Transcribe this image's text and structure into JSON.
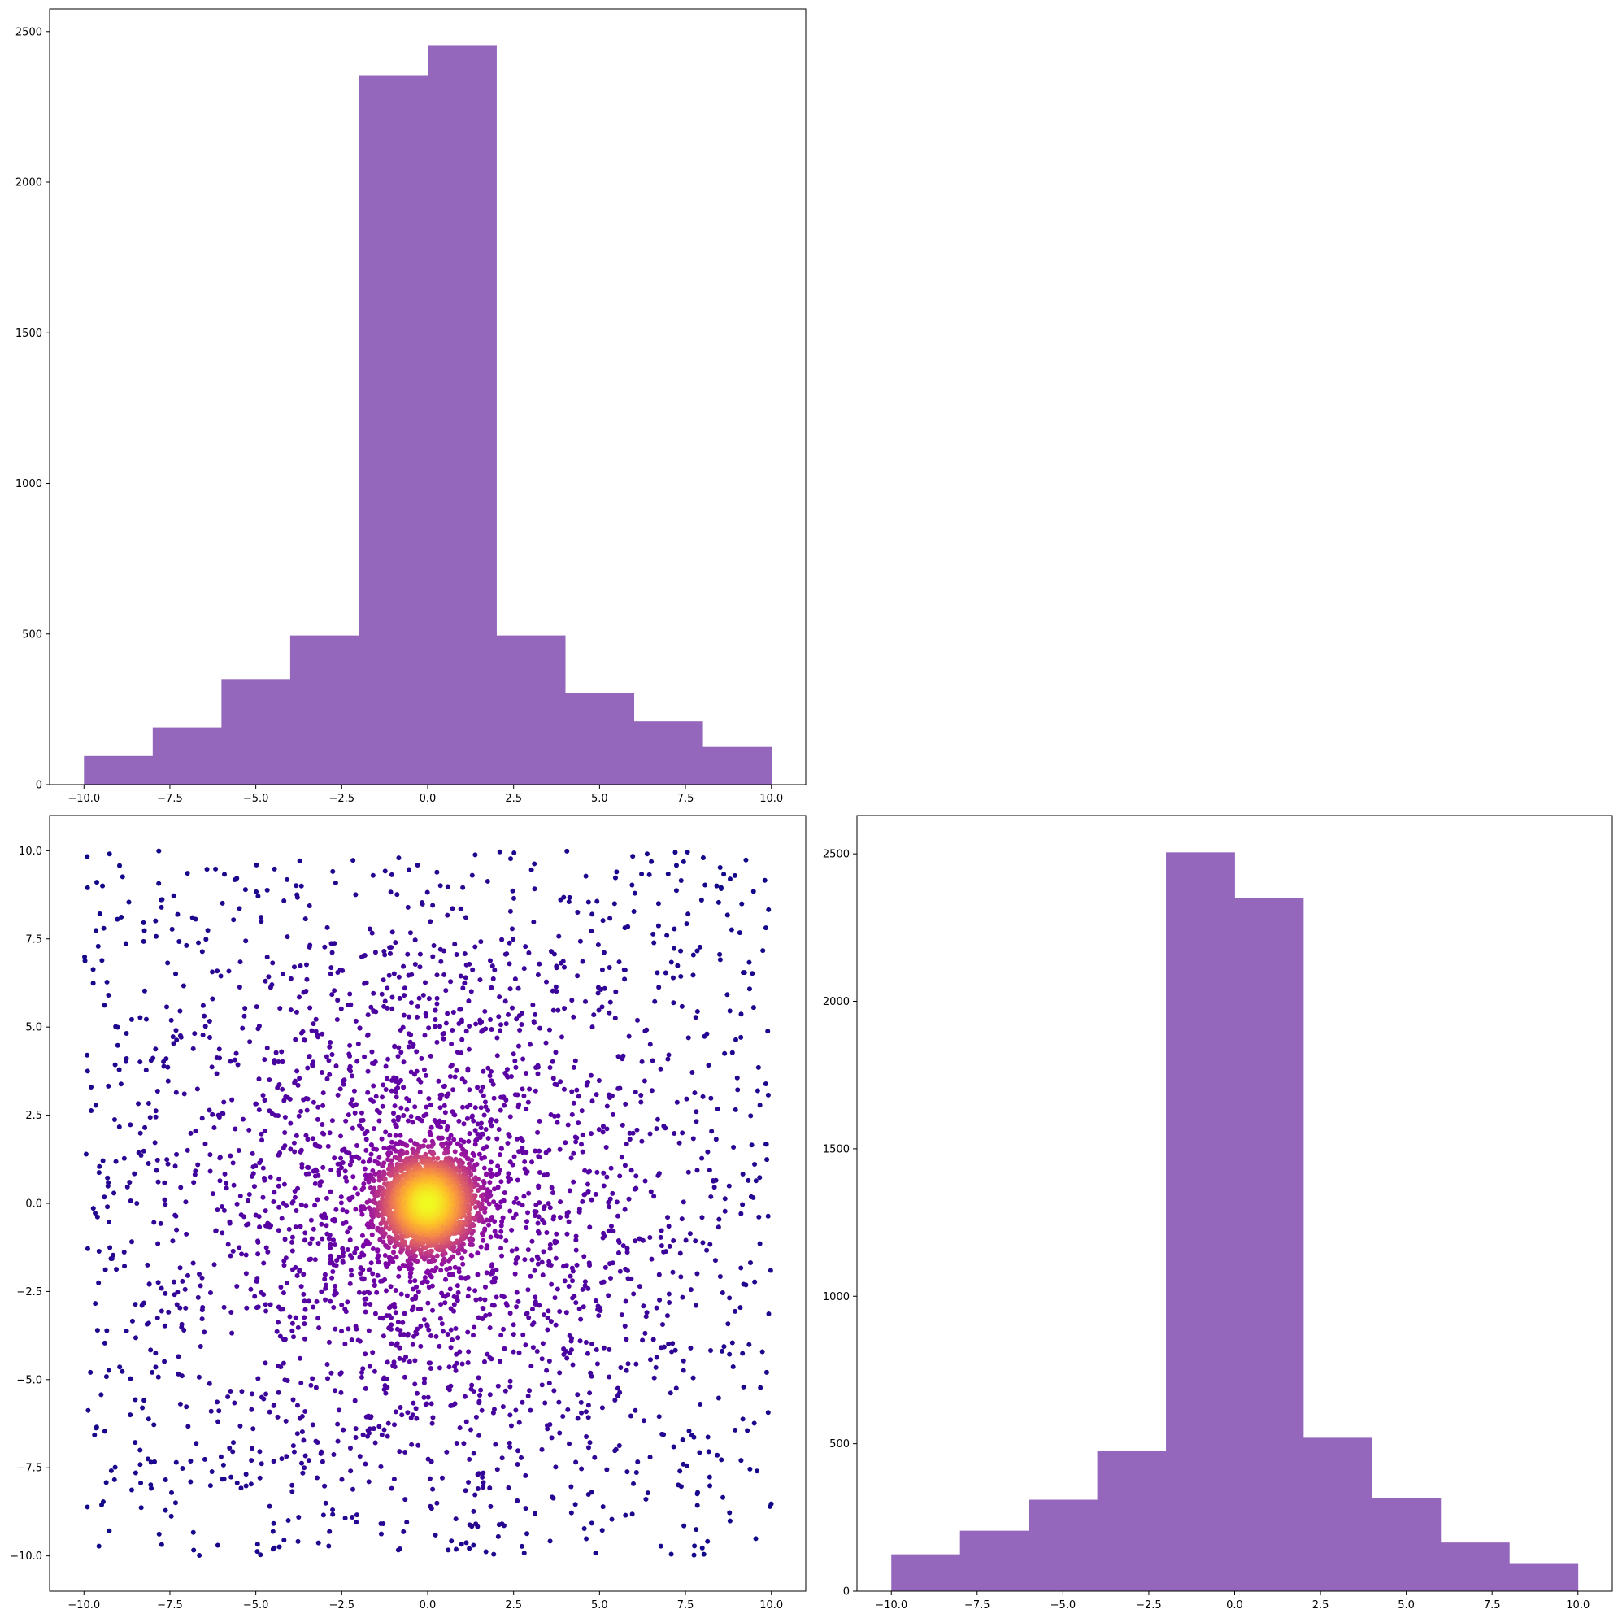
{
  "figure": {
    "background": "#ffffff",
    "panel_layout": "2x2 corner plot; upper-right panel empty"
  },
  "colors": {
    "histogram_fill": "#9467bd",
    "scatter_colormap": "plasma",
    "axes_edge": "#000000"
  },
  "chart_data": [
    {
      "type": "bar",
      "panel": "top-left",
      "subtype": "histogram",
      "bin_edges": [
        -10,
        -8,
        -6,
        -4,
        -2,
        0,
        2,
        4,
        6,
        8,
        10
      ],
      "values": [
        95,
        190,
        350,
        495,
        2355,
        2455,
        495,
        305,
        210,
        125
      ],
      "xlim": [
        -11,
        11
      ],
      "ylim": [
        0,
        2575
      ],
      "xticks": [
        -10,
        -7.5,
        -5,
        -2.5,
        0,
        2.5,
        5,
        7.5,
        10
      ],
      "xtick_labels": [
        "−10.0",
        "−7.5",
        "−5.0",
        "−2.5",
        "0.0",
        "2.5",
        "5.0",
        "7.5",
        "10.0"
      ],
      "yticks": [
        0,
        500,
        1000,
        1500,
        2000,
        2500
      ],
      "ytick_labels": [
        "0",
        "500",
        "1000",
        "1500",
        "2000",
        "2500"
      ],
      "title": "",
      "xlabel": "",
      "ylabel": "",
      "grid": false
    },
    {
      "type": "scatter",
      "panel": "bottom-left",
      "description_of_data": "approx. 5000 points: dense Gaussian core near (0,0) plus broad spread to ±10, colored by local density (plasma colormap)",
      "approx_point_count": 5000,
      "components": [
        {
          "share": 0.44,
          "center": [
            0,
            0
          ],
          "sigma": 0.7
        },
        {
          "share": 0.31,
          "center": [
            0,
            0
          ],
          "sigma": 3.5
        },
        {
          "share": 0.25,
          "distribution": "uniform",
          "range": [
            -10,
            10
          ]
        }
      ],
      "xlim": [
        -11,
        11
      ],
      "ylim": [
        -11,
        11
      ],
      "xticks": [
        -10,
        -7.5,
        -5,
        -2.5,
        0,
        2.5,
        5,
        7.5,
        10
      ],
      "xtick_labels": [
        "−10.0",
        "−7.5",
        "−5.0",
        "−2.5",
        "0.0",
        "2.5",
        "5.0",
        "7.5",
        "10.0"
      ],
      "yticks": [
        -10,
        -7.5,
        -5,
        -2.5,
        0,
        2.5,
        5,
        7.5,
        10
      ],
      "ytick_labels": [
        "−10.0",
        "−7.5",
        "−5.0",
        "−2.5",
        "0.0",
        "2.5",
        "5.0",
        "7.5",
        "10.0"
      ],
      "title": "",
      "xlabel": "",
      "ylabel": "",
      "grid": false
    },
    {
      "type": "bar",
      "panel": "bottom-right",
      "subtype": "histogram",
      "bin_edges": [
        -10,
        -8,
        -6,
        -4,
        -2,
        0,
        2,
        4,
        6,
        8,
        10
      ],
      "values": [
        125,
        205,
        310,
        475,
        2505,
        2350,
        520,
        315,
        165,
        95
      ],
      "xlim": [
        -11,
        11
      ],
      "ylim": [
        0,
        2630
      ],
      "xticks": [
        -10,
        -7.5,
        -5,
        -2.5,
        0,
        2.5,
        5,
        7.5,
        10
      ],
      "xtick_labels": [
        "−10.0",
        "−7.5",
        "−5.0",
        "−2.5",
        "0.0",
        "2.5",
        "5.0",
        "7.5",
        "10.0"
      ],
      "yticks": [
        0,
        500,
        1000,
        1500,
        2000,
        2500
      ],
      "ytick_labels": [
        "0",
        "500",
        "1000",
        "1500",
        "2000",
        "2500"
      ],
      "title": "",
      "xlabel": "",
      "ylabel": "",
      "grid": false
    }
  ]
}
